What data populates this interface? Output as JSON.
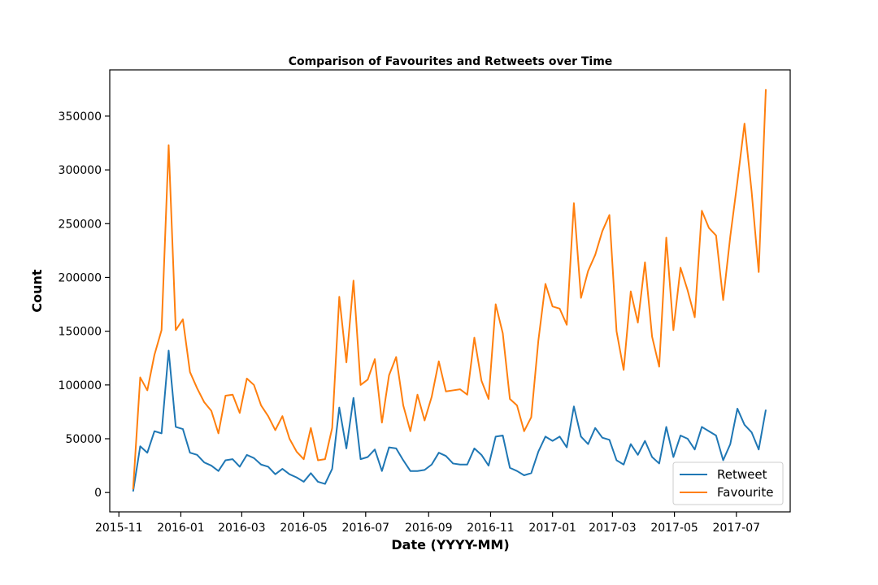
{
  "chart_data": {
    "type": "line",
    "title": "Comparison of Favourites and Retweets over Time",
    "xlabel": "Date (YYYY-MM)",
    "ylabel": "Count",
    "x_ticks": [
      "2015-11",
      "2016-01",
      "2016-03",
      "2016-05",
      "2016-07",
      "2016-09",
      "2016-11",
      "2017-01",
      "2017-03",
      "2017-05",
      "2017-07"
    ],
    "y_ticks": [
      0,
      50000,
      100000,
      150000,
      200000,
      250000,
      300000,
      350000
    ],
    "ylim": [
      -18000,
      393000
    ],
    "xlim": [
      "2015-10-23",
      "2017-08-23"
    ],
    "grid": false,
    "legend_position": "lower-right",
    "x": [
      "2015-11-15",
      "2015-11-22",
      "2015-11-29",
      "2015-12-06",
      "2015-12-13",
      "2015-12-20",
      "2015-12-27",
      "2016-01-03",
      "2016-01-10",
      "2016-01-17",
      "2016-01-24",
      "2016-01-31",
      "2016-02-07",
      "2016-02-14",
      "2016-02-21",
      "2016-02-28",
      "2016-03-06",
      "2016-03-13",
      "2016-03-20",
      "2016-03-27",
      "2016-04-03",
      "2016-04-10",
      "2016-04-17",
      "2016-04-24",
      "2016-05-01",
      "2016-05-08",
      "2016-05-15",
      "2016-05-22",
      "2016-05-29",
      "2016-06-05",
      "2016-06-12",
      "2016-06-19",
      "2016-06-26",
      "2016-07-03",
      "2016-07-10",
      "2016-07-17",
      "2016-07-24",
      "2016-07-31",
      "2016-08-07",
      "2016-08-14",
      "2016-08-21",
      "2016-08-28",
      "2016-09-04",
      "2016-09-11",
      "2016-09-18",
      "2016-09-25",
      "2016-10-02",
      "2016-10-09",
      "2016-10-16",
      "2016-10-23",
      "2016-10-30",
      "2016-11-06",
      "2016-11-13",
      "2016-11-20",
      "2016-11-27",
      "2016-12-04",
      "2016-12-11",
      "2016-12-18",
      "2016-12-25",
      "2017-01-01",
      "2017-01-08",
      "2017-01-15",
      "2017-01-22",
      "2017-01-29",
      "2017-02-05",
      "2017-02-12",
      "2017-02-19",
      "2017-02-26",
      "2017-03-05",
      "2017-03-12",
      "2017-03-19",
      "2017-03-26",
      "2017-04-02",
      "2017-04-09",
      "2017-04-16",
      "2017-04-23",
      "2017-04-30",
      "2017-05-07",
      "2017-05-14",
      "2017-05-21",
      "2017-05-28",
      "2017-06-04",
      "2017-06-11",
      "2017-06-18",
      "2017-06-25",
      "2017-07-02",
      "2017-07-09",
      "2017-07-16",
      "2017-07-23",
      "2017-07-30"
    ],
    "series": [
      {
        "name": "Retweet",
        "color": "#1f77b4",
        "values": [
          1000,
          43000,
          37000,
          57000,
          55000,
          132000,
          61000,
          59000,
          37000,
          35000,
          28000,
          25000,
          20000,
          30000,
          31000,
          24000,
          35000,
          32000,
          26000,
          24000,
          17000,
          22000,
          17000,
          14000,
          10000,
          18000,
          10000,
          8000,
          22000,
          79000,
          41000,
          88000,
          31000,
          33000,
          40000,
          20000,
          42000,
          41000,
          30000,
          20000,
          20000,
          21000,
          26000,
          37000,
          34000,
          27000,
          26000,
          26000,
          41000,
          35000,
          25000,
          52000,
          53000,
          23000,
          20000,
          16000,
          18000,
          38000,
          52000,
          48000,
          52000,
          42000,
          80000,
          52000,
          45000,
          60000,
          51000,
          49000,
          30000,
          26000,
          45000,
          35000,
          48000,
          33000,
          27000,
          61000,
          33000,
          53000,
          50000,
          40000,
          61000,
          57000,
          53000,
          30000,
          45000,
          78000,
          63000,
          56000,
          40000,
          77000
        ]
      },
      {
        "name": "Favourite",
        "color": "#ff7f0e",
        "values": [
          3000,
          107000,
          95000,
          128000,
          151000,
          323000,
          151000,
          161000,
          112000,
          97000,
          84000,
          76000,
          55000,
          90000,
          91000,
          74000,
          106000,
          100000,
          81000,
          71000,
          58000,
          71000,
          50000,
          38000,
          31000,
          60000,
          30000,
          31000,
          60000,
          182000,
          121000,
          197000,
          100000,
          105000,
          124000,
          65000,
          109000,
          126000,
          81000,
          57000,
          91000,
          67000,
          89000,
          122000,
          94000,
          95000,
          96000,
          91000,
          144000,
          104000,
          87000,
          175000,
          148000,
          87000,
          81000,
          57000,
          70000,
          141000,
          194000,
          173000,
          171000,
          156000,
          269000,
          181000,
          206000,
          221000,
          243000,
          258000,
          150000,
          114000,
          187000,
          158000,
          214000,
          145000,
          117000,
          237000,
          151000,
          209000,
          188000,
          163000,
          262000,
          246000,
          239000,
          179000,
          238000,
          289000,
          343000,
          280000,
          205000,
          375000
        ]
      }
    ]
  }
}
